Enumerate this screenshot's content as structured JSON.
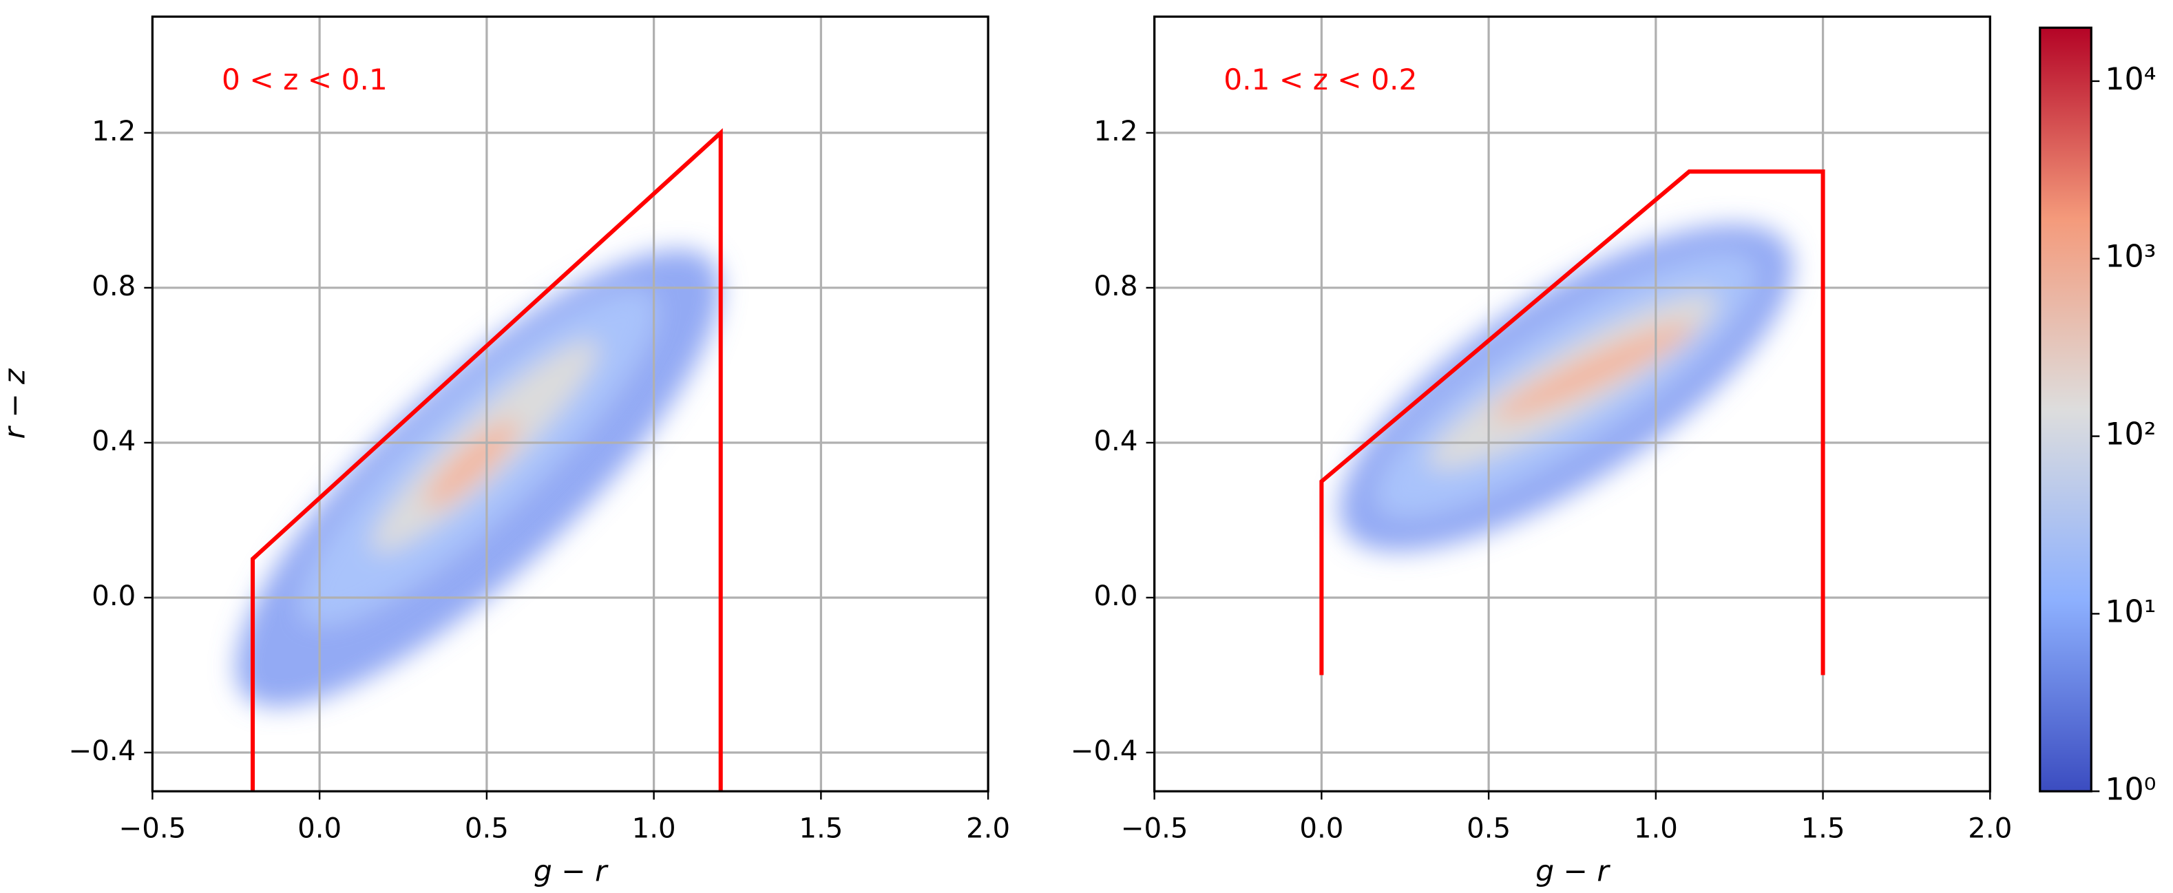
{
  "chart_data": [
    {
      "type": "hist2d",
      "xlabel": "g − r",
      "ylabel": "r − z",
      "annotation": "0 < z < 0.1",
      "xlim": [
        -0.5,
        2.0
      ],
      "ylim": [
        -0.5,
        1.5
      ],
      "xticks": [
        {
          "value": -0.5,
          "label": "−0.5"
        },
        {
          "value": 0,
          "label": "0.0"
        },
        {
          "value": 0.5,
          "label": "0.5"
        },
        {
          "value": 1,
          "label": "1.0"
        },
        {
          "value": 1.5,
          "label": "1.5"
        },
        {
          "value": 2,
          "label": "2.0"
        }
      ],
      "yticks": [
        {
          "value": -0.4,
          "label": "−0.4"
        },
        {
          "value": 0,
          "label": "0.0"
        },
        {
          "value": 0.4,
          "label": "0.4"
        },
        {
          "value": 0.8,
          "label": "0.8"
        },
        {
          "value": 1.2,
          "label": "1.2"
        }
      ],
      "grid": true,
      "boundary": {
        "color": "#ff0000",
        "x": [
          -0.2,
          -0.2,
          1.2,
          1.2
        ],
        "y": [
          -0.5,
          0.1,
          1.2,
          -0.5
        ]
      }
    },
    {
      "type": "hist2d",
      "xlabel": "g − r",
      "annotation": "0.1 < z < 0.2",
      "xlim": [
        -0.5,
        2.0
      ],
      "ylim": [
        -0.5,
        1.5
      ],
      "xticks": [
        {
          "value": -0.5,
          "label": "−0.5"
        },
        {
          "value": 0,
          "label": "0.0"
        },
        {
          "value": 0.5,
          "label": "0.5"
        },
        {
          "value": 1,
          "label": "1.0"
        },
        {
          "value": 1.5,
          "label": "1.5"
        },
        {
          "value": 2,
          "label": "2.0"
        }
      ],
      "yticks": [
        {
          "value": -0.4,
          "label": "−0.4"
        },
        {
          "value": 0,
          "label": "0.0"
        },
        {
          "value": 0.4,
          "label": "0.4"
        },
        {
          "value": 0.8,
          "label": "0.8"
        },
        {
          "value": 1.2,
          "label": "1.2"
        }
      ],
      "grid": true,
      "boundary": {
        "color": "#ff0000",
        "x": [
          0,
          0,
          1.1,
          1.5,
          1.5
        ],
        "y": [
          -0.2,
          0.3,
          1.1,
          1.1,
          -0.2
        ]
      }
    },
    {
      "type": "colorbar",
      "log": true,
      "clim": [
        1,
        20000
      ],
      "colors": [
        "#3b4cc0",
        "#8db0fe",
        "#dddddd",
        "#f49a7b",
        "#b40426"
      ],
      "ticks": [
        {
          "value": 1,
          "label": "10⁰"
        },
        {
          "value": 10,
          "label": "10¹"
        },
        {
          "value": 100,
          "label": "10²"
        },
        {
          "value": 1000,
          "label": "10³"
        },
        {
          "value": 10000,
          "label": "10⁴"
        }
      ]
    }
  ]
}
